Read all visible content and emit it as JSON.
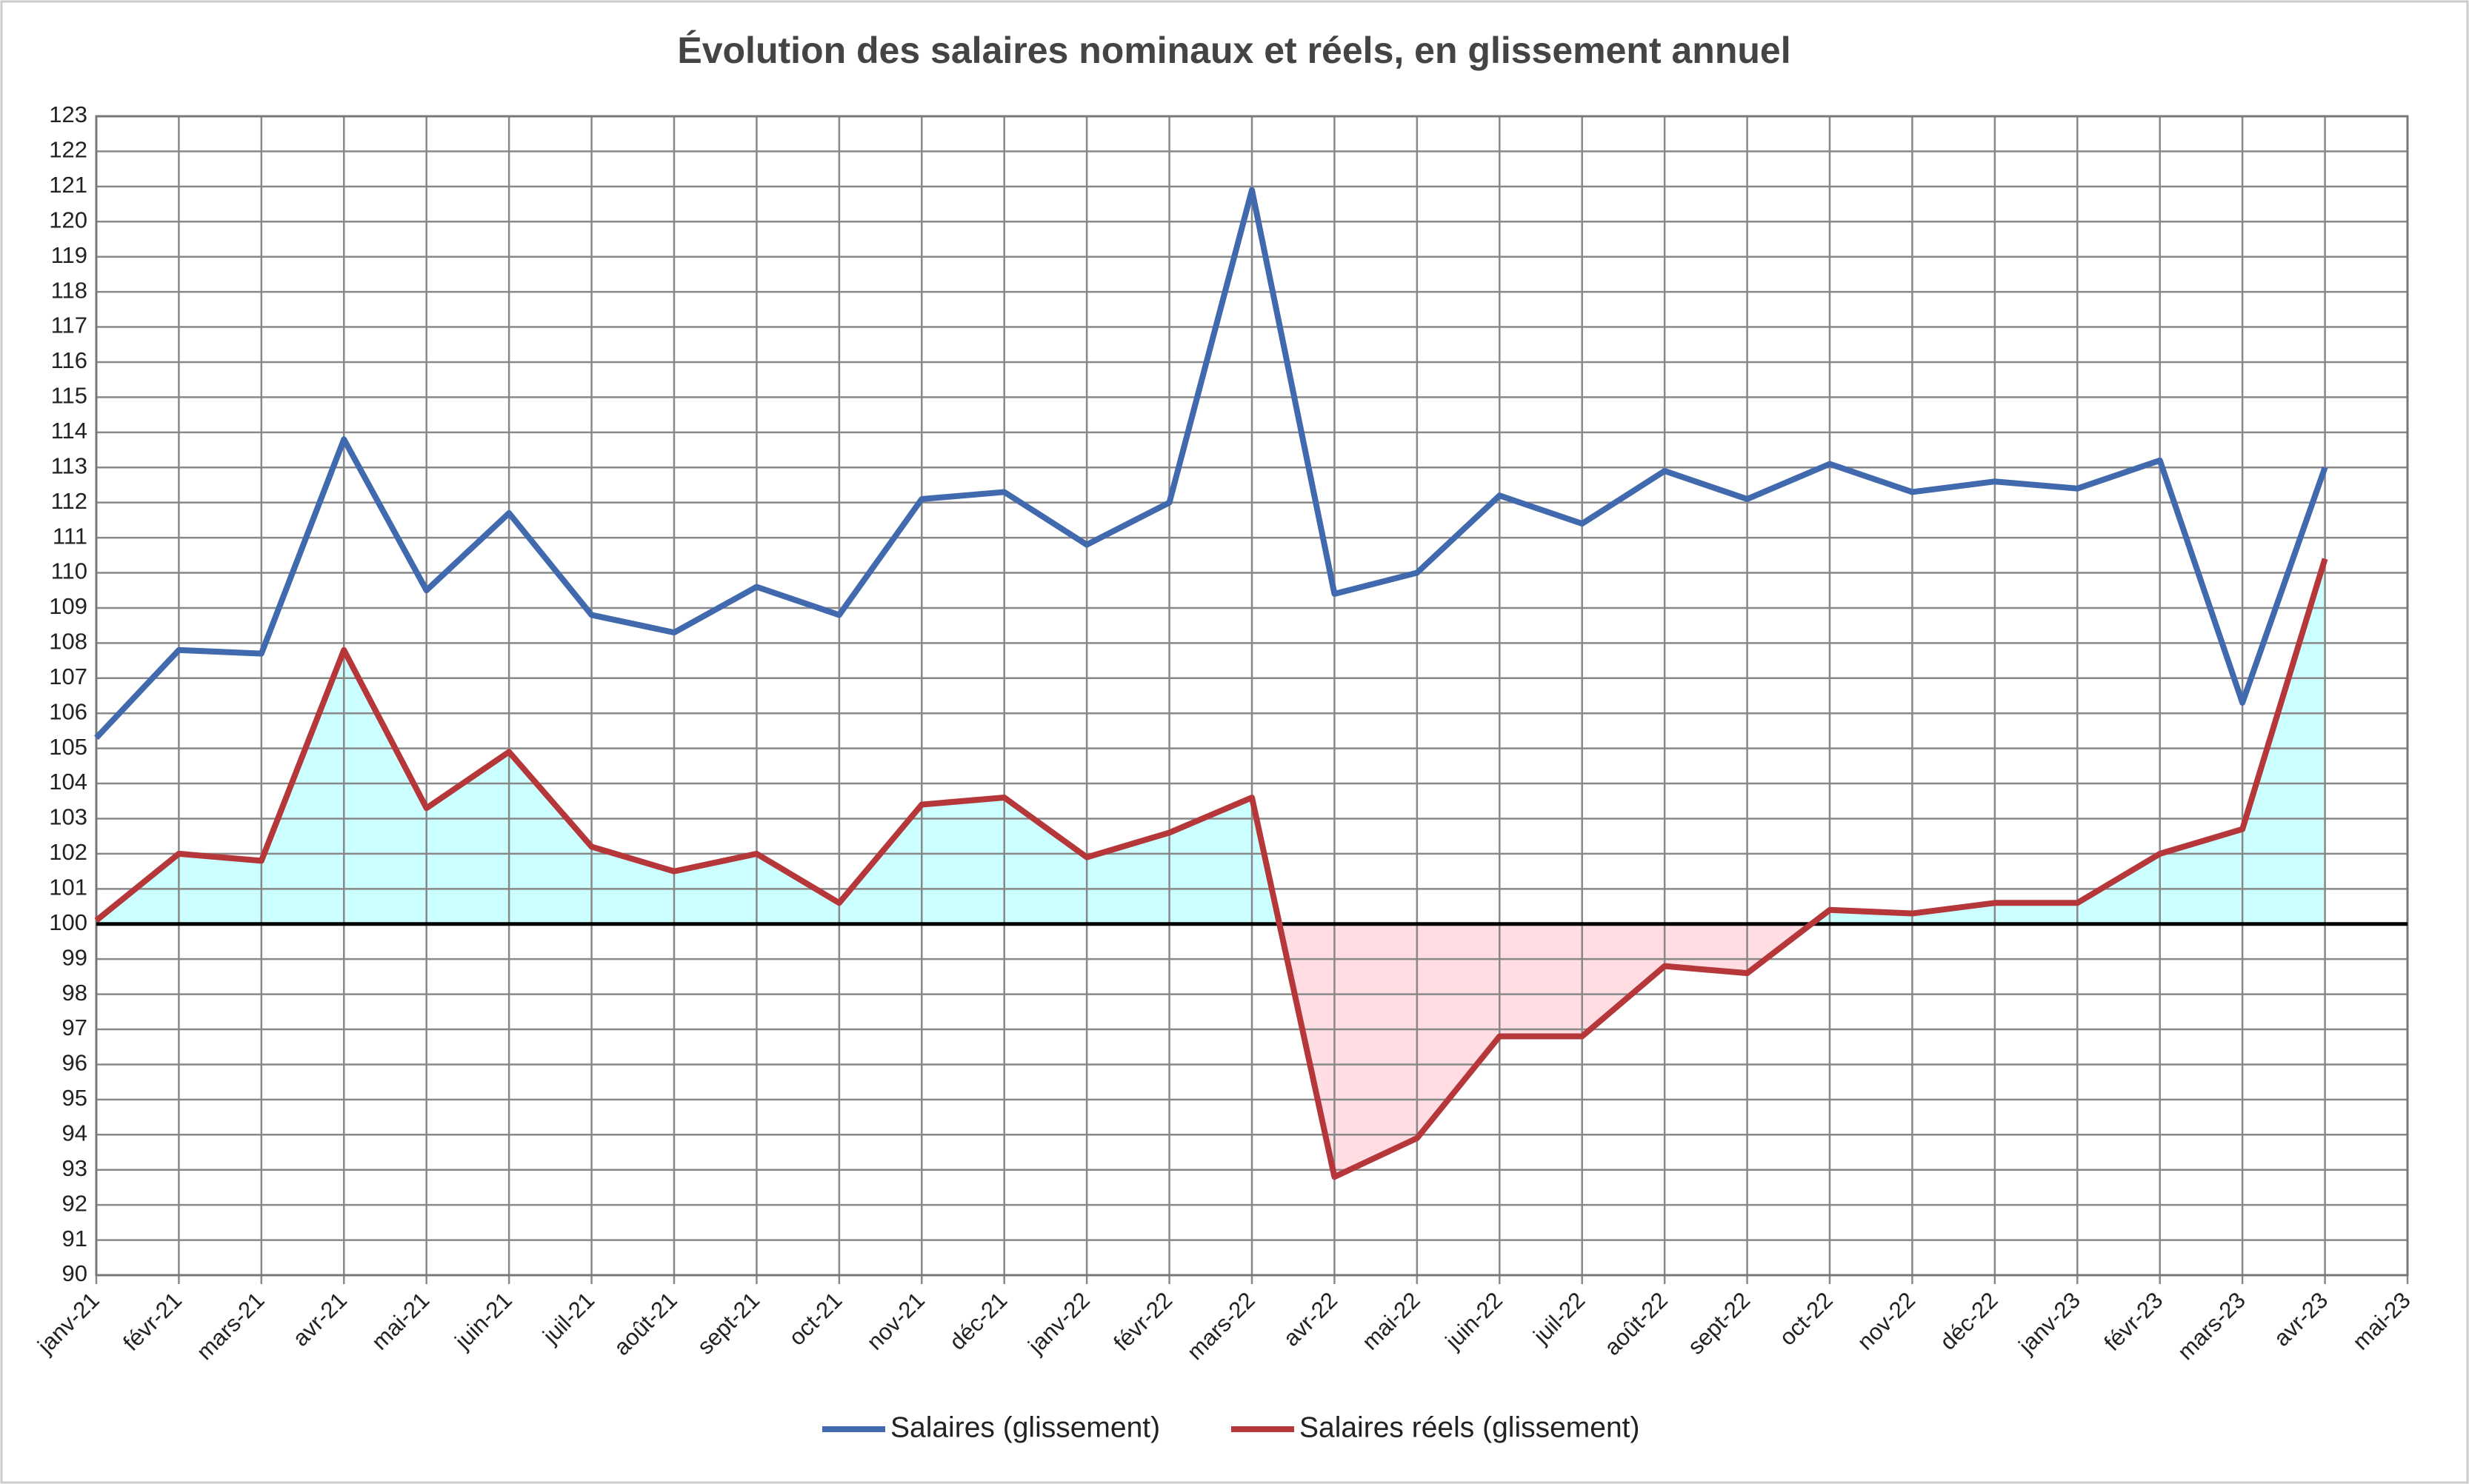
{
  "chart_data": {
    "type": "line",
    "title": "Évolution des salaires nominaux et réels, en glissement annuel",
    "categories": [
      "janv-21",
      "févr-21",
      "mars-21",
      "avr-21",
      "mai-21",
      "juin-21",
      "juil-21",
      "août-21",
      "sept-21",
      "oct-21",
      "nov-21",
      "déc-21",
      "janv-22",
      "févr-22",
      "mars-22",
      "avr-22",
      "mai-22",
      "juin-22",
      "juil-22",
      "août-22",
      "sept-22",
      "oct-22",
      "nov-22",
      "déc-22",
      "janv-23",
      "févr-23",
      "mars-23",
      "avr-23",
      "mai-23"
    ],
    "series": [
      {
        "name": "Salaires (glissement)",
        "color": "#4169ad",
        "values": [
          105.3,
          107.8,
          107.7,
          113.8,
          109.5,
          111.7,
          108.8,
          108.3,
          109.6,
          108.8,
          112.1,
          112.3,
          110.8,
          112.0,
          120.9,
          109.4,
          110.0,
          112.2,
          111.4,
          112.9,
          112.1,
          113.1,
          112.3,
          112.6,
          112.4,
          113.2,
          106.3,
          113.0,
          null
        ]
      },
      {
        "name": "Salaires réels (glissement)",
        "color": "#b5373a",
        "values": [
          100.1,
          102.0,
          101.8,
          107.8,
          103.3,
          104.9,
          102.2,
          101.5,
          102.0,
          100.6,
          103.4,
          103.6,
          101.9,
          102.6,
          103.6,
          92.8,
          93.9,
          96.8,
          96.8,
          98.8,
          98.6,
          100.4,
          100.3,
          100.6,
          100.6,
          102.0,
          102.7,
          110.4,
          null
        ],
        "fill_above": "#ccffff",
        "fill_below": "#ffdde2"
      }
    ],
    "baseline": 100,
    "ylim": [
      90,
      123
    ],
    "yticks": [
      90,
      91,
      92,
      93,
      94,
      95,
      96,
      97,
      98,
      99,
      100,
      101,
      102,
      103,
      104,
      105,
      106,
      107,
      108,
      109,
      110,
      111,
      112,
      113,
      114,
      115,
      116,
      117,
      118,
      119,
      120,
      121,
      122,
      123
    ],
    "grid": true,
    "legend": "bottom"
  }
}
